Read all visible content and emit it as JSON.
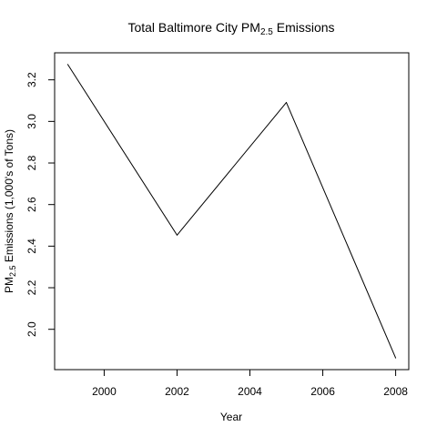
{
  "chart_data": {
    "type": "line",
    "title_main": "Total Baltimore City PM",
    "title_sub": "2.5",
    "title_tail": " Emissions",
    "xlabel": "Year",
    "ylabel_main": "PM",
    "ylabel_sub": "2.5",
    "ylabel_tail": " Emissions (1,000's of Tons)",
    "x": [
      1999,
      2002,
      2005,
      2008
    ],
    "y": [
      3.274,
      2.453,
      3.091,
      1.862
    ],
    "xlim": [
      1998.64,
      2008.36
    ],
    "ylim": [
      1.806,
      3.33
    ],
    "xticks": [
      2000,
      2002,
      2004,
      2006,
      2008
    ],
    "yticks": [
      2.0,
      2.2,
      2.4,
      2.6,
      2.8,
      3.0,
      3.2
    ],
    "ytick_labels": [
      "2.0",
      "2.2",
      "2.4",
      "2.6",
      "2.8",
      "3.0",
      "3.2"
    ],
    "line_color": "#000000",
    "grid": false
  }
}
